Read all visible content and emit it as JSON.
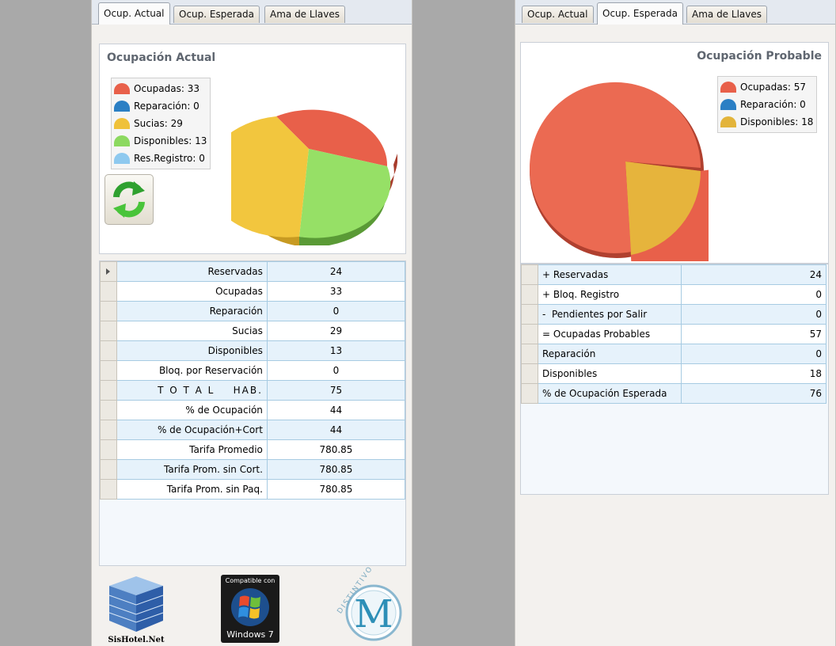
{
  "colors": {
    "ocupadas": "#e8604a",
    "reparacion": "#2b7fc4",
    "sucias": "#efc13a",
    "disponibles": "#8cd960",
    "res_registro": "#8ec9ef",
    "right_disponibles": "#e3b43a"
  },
  "left": {
    "tabs": [
      "Ocup. Actual",
      "Ocup. Esperada",
      "Ama de Llaves"
    ],
    "active_tab": 0,
    "chart_title": "Ocupación Actual",
    "legend": [
      "Ocupadas: 33",
      "Reparación: 0",
      "Sucias: 29",
      "Disponibles: 13",
      "Res.Registro: 0"
    ],
    "refresh_icon": "refresh-icon",
    "rows": [
      {
        "label": "Reservadas",
        "value": "24"
      },
      {
        "label": "Ocupadas",
        "value": "33"
      },
      {
        "label": "Reparación",
        "value": "0"
      },
      {
        "label": "Sucias",
        "value": "29"
      },
      {
        "label": "Disponibles",
        "value": "13"
      },
      {
        "label": "Bloq. por Reservación",
        "value": "0"
      },
      {
        "label": "T O T A L    HAB.",
        "value": "75"
      },
      {
        "label": "% de Ocupación",
        "value": "44"
      },
      {
        "label": "% de Ocupación+Cort",
        "value": "44"
      },
      {
        "label": "Tarifa Promedio",
        "value": "780.85"
      },
      {
        "label": "Tarifa Prom. sin Cort.",
        "value": "780.85"
      },
      {
        "label": "Tarifa Prom. sin Paq.",
        "value": "780.85"
      }
    ],
    "logos": {
      "sishotel": "SisHotel.Net",
      "windows_compat": "Compatible con",
      "windows_name": "Windows 7",
      "distintivo": "DISTINTIVO",
      "m_letter": "M"
    }
  },
  "right": {
    "tabs": [
      "Ocup. Actual",
      "Ocup. Esperada",
      "Ama de Llaves"
    ],
    "active_tab": 1,
    "chart_title": "Ocupación Probable",
    "legend": [
      "Ocupadas: 57",
      "Reparación: 0",
      "Disponibles: 18"
    ],
    "rows": [
      {
        "label": "+ Reservadas",
        "value": "24"
      },
      {
        "label": "+ Bloq. Registro",
        "value": "0"
      },
      {
        "label": "-  Pendientes por Salir",
        "value": "0"
      },
      {
        "label": "= Ocupadas Probables",
        "value": "57"
      },
      {
        "label": "Reparación",
        "value": "0"
      },
      {
        "label": "Disponibles",
        "value": "18"
      },
      {
        "label": "% de Ocupación Esperada",
        "value": "76"
      }
    ]
  }
}
